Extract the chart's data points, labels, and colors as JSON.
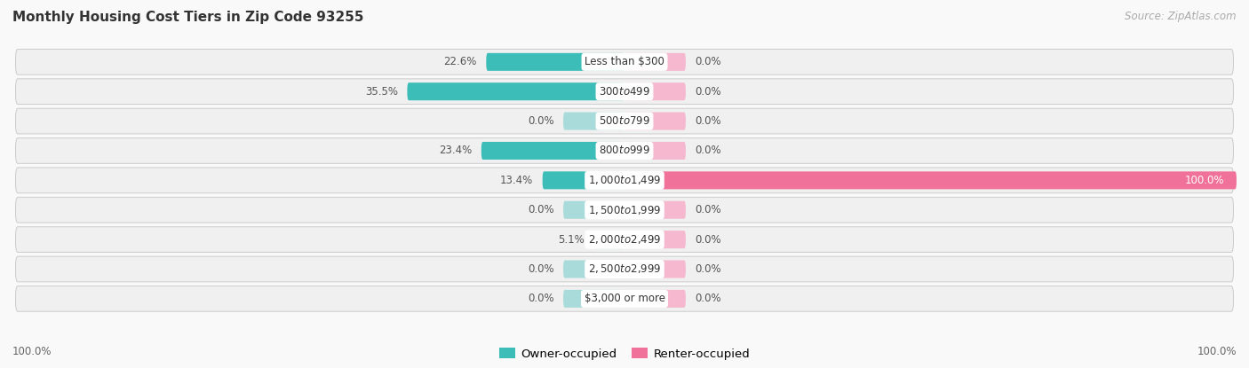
{
  "title": "Monthly Housing Cost Tiers in Zip Code 93255",
  "source": "Source: ZipAtlas.com",
  "categories": [
    "Less than $300",
    "$300 to $499",
    "$500 to $799",
    "$800 to $999",
    "$1,000 to $1,499",
    "$1,500 to $1,999",
    "$2,000 to $2,499",
    "$2,500 to $2,999",
    "$3,000 or more"
  ],
  "owner_values": [
    22.6,
    35.5,
    0.0,
    23.4,
    13.4,
    0.0,
    5.1,
    0.0,
    0.0
  ],
  "renter_values": [
    0.0,
    0.0,
    0.0,
    0.0,
    100.0,
    0.0,
    0.0,
    0.0,
    0.0
  ],
  "owner_color_full": "#3dbdb8",
  "owner_color_zero": "#a8dbd9",
  "renter_color_full": "#f0729a",
  "renter_color_zero": "#f5b8ce",
  "row_bg_color": "#f0f0f0",
  "row_border_color": "#cccccc",
  "fig_bg_color": "#f9f9f9",
  "axis_label_left": "100.0%",
  "axis_label_right": "100.0%",
  "legend_owner": "Owner-occupied",
  "legend_renter": "Renter-occupied",
  "xlim_left": -100,
  "xlim_right": 100,
  "bar_height": 0.6,
  "zero_bar_width": 10.0,
  "cat_label_fontsize": 8.5,
  "val_label_fontsize": 8.5,
  "title_fontsize": 11,
  "source_fontsize": 8.5
}
